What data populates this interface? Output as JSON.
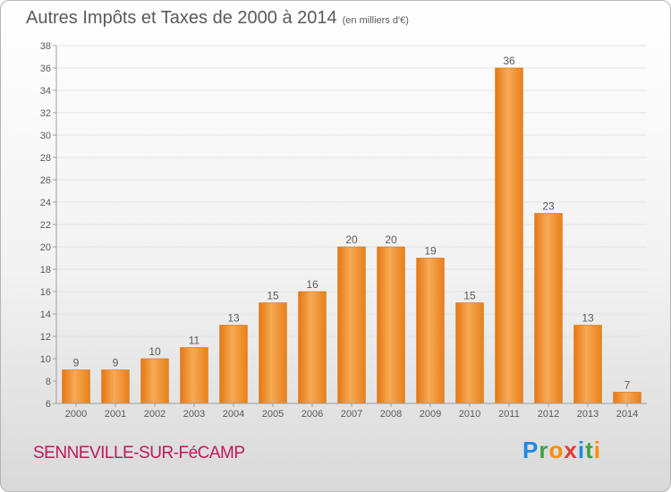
{
  "title": "Autres Impôts et Taxes de 2000 à 2014",
  "unit": "(en milliers d'€)",
  "commune": "SENNEVILLE-SUR-FéCAMP",
  "logo": {
    "letters": [
      "P",
      "r",
      "o",
      "x",
      "i",
      "t",
      "i"
    ],
    "colors": [
      "#1e88e5",
      "#43a047",
      "#fb8c00",
      "#e53935",
      "#1e88e5",
      "#43a047",
      "#fb8c00"
    ]
  },
  "colors": {
    "bar": "#f28c1e",
    "bar_light": "#f7b15c",
    "text": "#5a5a5a",
    "grid": "#e3e3e3"
  },
  "chart_data": {
    "type": "bar",
    "categories": [
      "2000",
      "2001",
      "2002",
      "2003",
      "2004",
      "2005",
      "2006",
      "2007",
      "2008",
      "2009",
      "2010",
      "2011",
      "2012",
      "2013",
      "2014"
    ],
    "values": [
      9,
      9,
      10,
      11,
      13,
      15,
      16,
      20,
      20,
      19,
      15,
      36,
      23,
      13,
      7
    ],
    "title": "Autres Impôts et Taxes de 2000 à 2014",
    "xlabel": "",
    "ylabel": "",
    "ylim": [
      6,
      38
    ],
    "yticks": [
      6,
      8,
      10,
      12,
      14,
      16,
      18,
      20,
      22,
      24,
      26,
      28,
      30,
      32,
      34,
      36,
      38
    ],
    "grid": true
  }
}
